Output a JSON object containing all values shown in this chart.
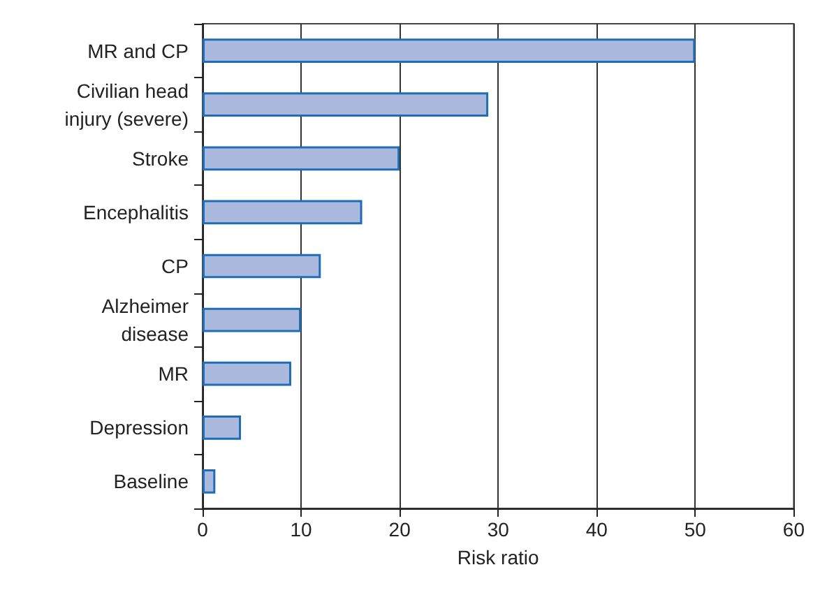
{
  "chart_data": {
    "type": "bar",
    "orientation": "horizontal",
    "xlabel": "Risk ratio",
    "categories": [
      "MR and CP",
      "Civilian head\ninjury (severe)",
      "Stroke",
      "Encephalitis",
      "CP",
      "Alzheimer\ndisease",
      "MR",
      "Depression",
      "Baseline"
    ],
    "values": [
      50,
      29,
      20,
      16.2,
      12,
      10,
      9,
      3.9,
      1.3
    ],
    "color": "#abb9de",
    "xlim": [
      0,
      60
    ],
    "xticks": [
      0,
      10,
      20,
      30,
      40,
      50,
      60
    ],
    "grid": "x"
  }
}
